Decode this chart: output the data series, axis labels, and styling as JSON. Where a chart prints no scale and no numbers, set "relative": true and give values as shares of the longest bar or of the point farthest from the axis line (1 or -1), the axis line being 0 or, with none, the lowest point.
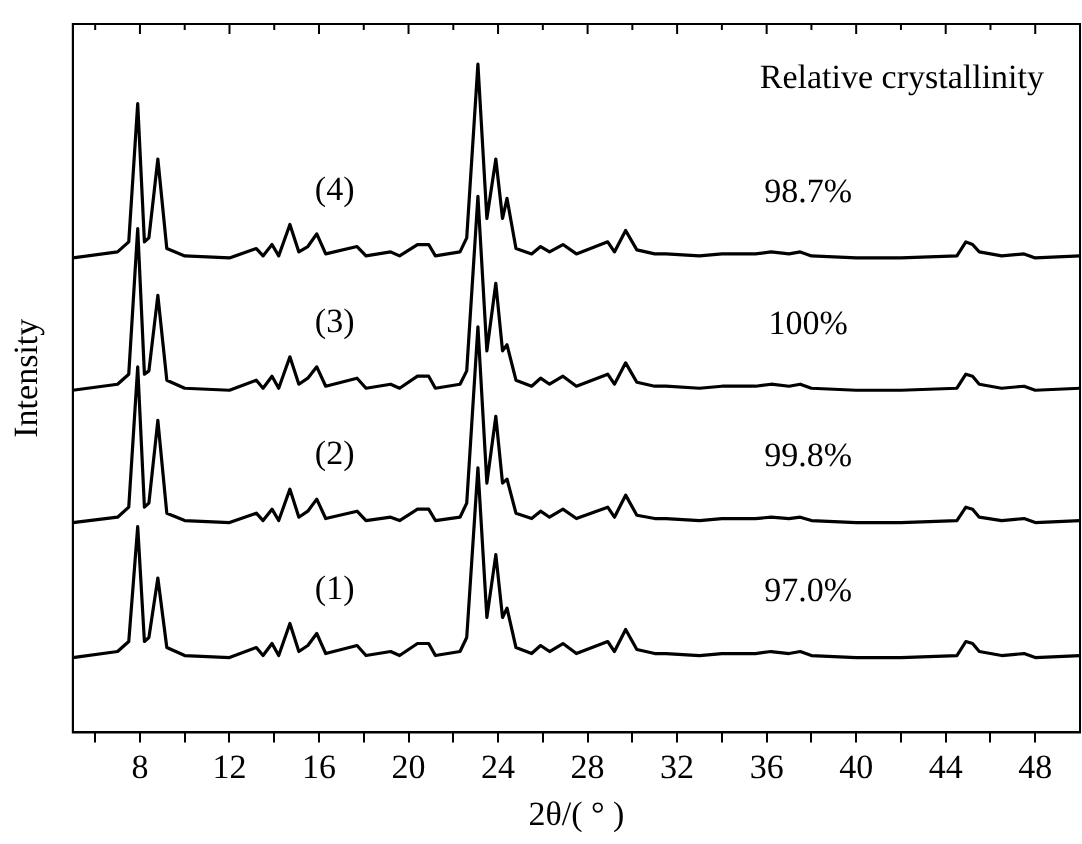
{
  "chart_data": {
    "type": "line",
    "relative": true,
    "xlabel": "2θ/( ° )",
    "ylabel": "Intensity",
    "legend": false,
    "grid": false,
    "marker": "none",
    "line_style": "solid",
    "xlim": [
      5,
      50
    ],
    "xticks": [
      {
        "value": 6,
        "label": null
      },
      8,
      {
        "value": 10,
        "label": null
      },
      12,
      {
        "value": 14,
        "label": null
      },
      16,
      {
        "value": 18,
        "label": null
      },
      20,
      {
        "value": 22,
        "label": null
      },
      24,
      {
        "value": 26,
        "label": null
      },
      28,
      {
        "value": 30,
        "label": null
      },
      32,
      {
        "value": 34,
        "label": null
      },
      36,
      {
        "value": 38,
        "label": null
      },
      40,
      {
        "value": 42,
        "label": null
      },
      44,
      {
        "value": 46,
        "label": null
      },
      48
    ],
    "x": [
      5,
      7,
      7.5,
      7.9,
      8.2,
      8.4,
      8.8,
      9.2,
      10,
      12,
      13.2,
      13.5,
      13.9,
      14.2,
      14.7,
      15.1,
      15.5,
      15.9,
      16.3,
      17.7,
      18.1,
      19.2,
      19.6,
      20.4,
      20.9,
      21.2,
      22.3,
      22.6,
      23.1,
      23.5,
      23.9,
      24.2,
      24.4,
      24.8,
      25.5,
      25.9,
      26.3,
      26.9,
      27.5,
      28.9,
      29.2,
      29.7,
      30.2,
      31,
      31.5,
      33,
      34,
      35.5,
      36.2,
      37,
      37.5,
      38,
      40,
      42,
      44.5,
      44.9,
      45.2,
      45.5,
      46.5,
      47.5,
      48,
      50
    ],
    "series": [
      {
        "name": "(1)",
        "color": "#000000",
        "values": [
          0.112,
          0.121,
          0.136,
          0.308,
          0.136,
          0.142,
          0.231,
          0.127,
          0.115,
          0.112,
          0.127,
          0.115,
          0.133,
          0.115,
          0.163,
          0.121,
          0.13,
          0.148,
          0.118,
          0.13,
          0.115,
          0.121,
          0.115,
          0.133,
          0.133,
          0.115,
          0.121,
          0.142,
          0.396,
          0.172,
          0.266,
          0.172,
          0.186,
          0.127,
          0.118,
          0.13,
          0.121,
          0.133,
          0.118,
          0.136,
          0.121,
          0.154,
          0.124,
          0.118,
          0.118,
          0.115,
          0.118,
          0.118,
          0.121,
          0.118,
          0.121,
          0.115,
          0.112,
          0.112,
          0.115,
          0.136,
          0.133,
          0.121,
          0.115,
          0.118,
          0.112,
          0.115
        ]
      },
      {
        "name": "(2)",
        "color": "#000000",
        "values": [
          0.314,
          0.322,
          0.337,
          0.547,
          0.337,
          0.343,
          0.467,
          0.328,
          0.317,
          0.314,
          0.328,
          0.317,
          0.334,
          0.317,
          0.364,
          0.322,
          0.331,
          0.349,
          0.32,
          0.331,
          0.317,
          0.322,
          0.317,
          0.334,
          0.334,
          0.317,
          0.322,
          0.343,
          0.607,
          0.373,
          0.473,
          0.373,
          0.379,
          0.328,
          0.32,
          0.331,
          0.322,
          0.334,
          0.32,
          0.337,
          0.322,
          0.355,
          0.325,
          0.32,
          0.32,
          0.317,
          0.32,
          0.32,
          0.322,
          0.32,
          0.322,
          0.317,
          0.314,
          0.314,
          0.317,
          0.337,
          0.334,
          0.322,
          0.317,
          0.32,
          0.314,
          0.317
        ]
      },
      {
        "name": "(3)",
        "color": "#000000",
        "values": [
          0.512,
          0.521,
          0.536,
          0.754,
          0.536,
          0.541,
          0.654,
          0.527,
          0.515,
          0.512,
          0.527,
          0.515,
          0.533,
          0.515,
          0.562,
          0.521,
          0.53,
          0.547,
          0.518,
          0.53,
          0.515,
          0.521,
          0.515,
          0.533,
          0.533,
          0.515,
          0.521,
          0.541,
          0.802,
          0.571,
          0.672,
          0.571,
          0.58,
          0.527,
          0.518,
          0.53,
          0.521,
          0.533,
          0.518,
          0.536,
          0.521,
          0.553,
          0.524,
          0.518,
          0.518,
          0.515,
          0.518,
          0.518,
          0.521,
          0.518,
          0.521,
          0.515,
          0.512,
          0.512,
          0.515,
          0.536,
          0.533,
          0.521,
          0.515,
          0.518,
          0.512,
          0.515
        ]
      },
      {
        "name": "(4)",
        "color": "#000000",
        "values": [
          0.71,
          0.719,
          0.734,
          0.941,
          0.734,
          0.74,
          0.858,
          0.724,
          0.713,
          0.71,
          0.724,
          0.713,
          0.73,
          0.713,
          0.76,
          0.719,
          0.727,
          0.746,
          0.716,
          0.727,
          0.713,
          0.719,
          0.713,
          0.73,
          0.73,
          0.713,
          0.719,
          0.74,
          1,
          0.769,
          0.858,
          0.769,
          0.799,
          0.724,
          0.716,
          0.727,
          0.719,
          0.73,
          0.716,
          0.734,
          0.719,
          0.751,
          0.722,
          0.716,
          0.716,
          0.713,
          0.716,
          0.716,
          0.719,
          0.716,
          0.719,
          0.713,
          0.71,
          0.71,
          0.713,
          0.734,
          0.73,
          0.719,
          0.713,
          0.716,
          0.71,
          0.713
        ]
      }
    ],
    "annotations": [
      "Relative crystallinity",
      "97.0%",
      "99.8%",
      "100%",
      "98.7%"
    ]
  }
}
